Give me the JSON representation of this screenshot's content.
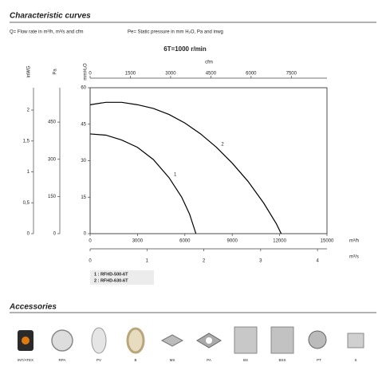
{
  "header": {
    "title": "Characteristic curves",
    "notes": [
      "Q= Flow rate in m³/h, m³/s and cfm",
      "Pe= Static pressure in mm H₂O, Pa and inwg"
    ]
  },
  "chart_data": {
    "type": "line",
    "title": "6T=1000 r/min",
    "xlim": [
      0,
      15000
    ],
    "xticks": [
      0,
      3000,
      6000,
      9000,
      12000,
      15000
    ],
    "x_label": "m³/h",
    "ylim": [
      0,
      60
    ],
    "yticks": [
      0,
      15,
      30,
      45,
      60
    ],
    "y_label": "mmH₂O",
    "extra_y_axes": [
      {
        "label": "Pa",
        "lim": [
          0,
          588.6
        ],
        "ticks": [
          0,
          150,
          300,
          450
        ]
      },
      {
        "label": "inWG",
        "lim": [
          0,
          2.362
        ],
        "ticks": [
          0,
          {
            "value": 0.5,
            "label": "0,5"
          },
          1,
          {
            "value": 1.5,
            "label": "1,5"
          },
          2
        ]
      }
    ],
    "extra_x_axes": [
      {
        "label": "cfm",
        "lim": [
          0,
          8829
        ],
        "ticks": [
          0,
          1500,
          3000,
          4500,
          6000,
          7500
        ]
      },
      {
        "label": "m³/s",
        "lim": [
          0,
          4.1667
        ],
        "ticks": [
          0,
          1,
          2,
          3,
          4
        ]
      }
    ],
    "series": [
      {
        "name": "1 : RFHD-500-6T",
        "label": "1",
        "color": "#000000",
        "x": [
          0,
          1000,
          2000,
          3000,
          4000,
          5000,
          5800,
          6300,
          6700
        ],
        "values": [
          41,
          40.5,
          38.5,
          35.5,
          30.5,
          23,
          15,
          8,
          0
        ]
      },
      {
        "name": "2 : RFHD-630-6T",
        "label": "2",
        "color": "#000000",
        "x": [
          0,
          1000,
          2000,
          3000,
          4000,
          5000,
          6000,
          7000,
          8000,
          9000,
          10000,
          11000,
          11800,
          12100
        ],
        "values": [
          53,
          54,
          54,
          53,
          51.5,
          49,
          45.5,
          41,
          35.5,
          29,
          21.5,
          12.5,
          4,
          0
        ]
      }
    ]
  },
  "accessories": {
    "title": "Accessories",
    "items": [
      "INT/ATEX",
      "RPA",
      "PV",
      "B",
      "MS",
      "PA",
      "BS",
      "BSS",
      "PT",
      "S"
    ]
  }
}
